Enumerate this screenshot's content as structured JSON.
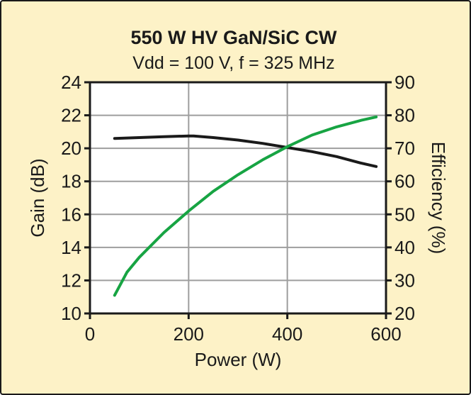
{
  "chart_data": {
    "type": "line",
    "title": "550 W HV GaN/SiC CW",
    "subtitle": "Vdd = 100 V, f = 325 MHz",
    "xlabel": "Power (W)",
    "ylabel": "Gain (dB)",
    "y2label": "Efficiency (%)",
    "xlim": [
      0,
      600
    ],
    "ylim": [
      10,
      24
    ],
    "y2lim": [
      20,
      90
    ],
    "x_ticks": [
      "0",
      "200",
      "400",
      "600"
    ],
    "y_ticks": [
      "10",
      "12",
      "14",
      "16",
      "18",
      "20",
      "22",
      "24"
    ],
    "y2_ticks": [
      "20",
      "30",
      "40",
      "50",
      "60",
      "70",
      "80",
      "90"
    ],
    "grid": true,
    "series": [
      {
        "axis": "left",
        "color": "#1a1a1a",
        "x": [
          50,
          100,
          150,
          200,
          210,
          250,
          300,
          350,
          400,
          450,
          500,
          550,
          580
        ],
        "y": [
          20.6,
          20.65,
          20.7,
          20.75,
          20.75,
          20.65,
          20.5,
          20.3,
          20.05,
          19.8,
          19.5,
          19.1,
          18.9
        ]
      },
      {
        "axis": "right",
        "color": "#17a443",
        "x": [
          50,
          75,
          100,
          150,
          200,
          250,
          300,
          350,
          400,
          450,
          500,
          550,
          580
        ],
        "y": [
          25.5,
          32.5,
          37,
          44.5,
          51,
          57,
          62,
          66.5,
          70.5,
          74,
          76.5,
          78.5,
          79.5
        ]
      }
    ]
  },
  "colors": {
    "background": "#fdf2c7",
    "plot_area": "#ffffff",
    "grid": "#9e9e9e",
    "text": "#1a1a1a",
    "frame": "#1a1a1a"
  }
}
